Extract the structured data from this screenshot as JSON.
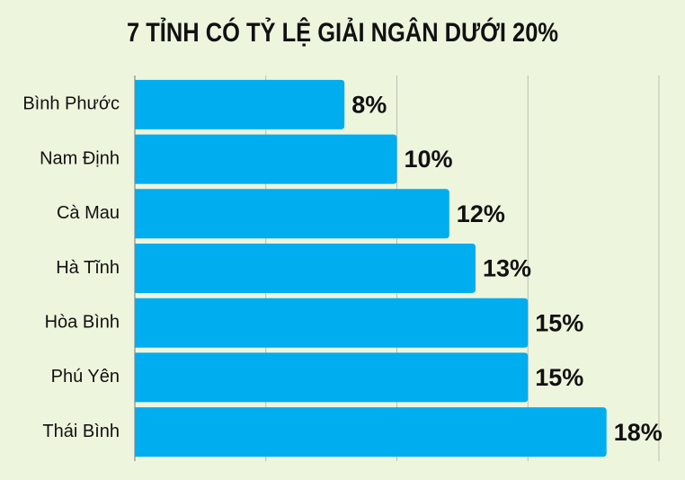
{
  "chart_data": {
    "type": "bar",
    "orientation": "horizontal",
    "title": "7 TỈNH CÓ TỶ LỆ GIẢI NGÂN DƯỚI 20%",
    "categories": [
      "Bình Phước",
      "Nam Định",
      "Cà Mau",
      "Hà Tĩnh",
      "Hòa Bình",
      "Phú Yên",
      "Thái Bình"
    ],
    "values": [
      8,
      10,
      12,
      13,
      15,
      15,
      18
    ],
    "value_labels": [
      "8%",
      "10%",
      "12%",
      "13%",
      "15%",
      "15%",
      "18%"
    ],
    "color": "#00adef",
    "xlim": [
      0,
      20
    ],
    "xticks": [
      0,
      5,
      10,
      15,
      20
    ],
    "grid": true
  }
}
